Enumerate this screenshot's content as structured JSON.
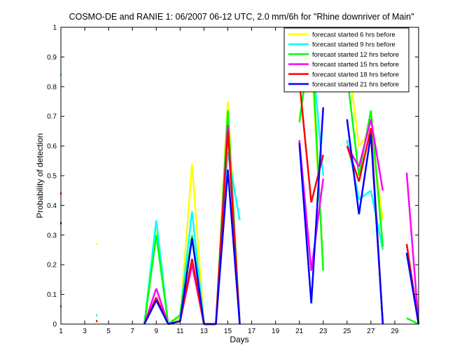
{
  "chart_data": {
    "type": "line",
    "title": "COSMO-DE and RANIE 1: 06/2007 06-12 UTC, 2.0 mm/6h for \"Rhine downriver of Main\"",
    "xlabel": "Days",
    "ylabel": "Probability of detection",
    "xlim": [
      1,
      31
    ],
    "ylim": [
      0,
      1
    ],
    "x_ticks": [
      1,
      3,
      5,
      7,
      9,
      11,
      13,
      15,
      17,
      19,
      21,
      23,
      25,
      27,
      29
    ],
    "y_ticks": [
      0,
      0.1,
      0.2,
      0.3,
      0.4,
      0.5,
      0.6,
      0.7,
      0.8,
      0.9,
      1
    ],
    "y_tick_labels": [
      "0",
      "0.1",
      "0.2",
      "0.3",
      "0.4",
      "0.5",
      "0.6",
      "0.7",
      "0.8",
      "0.9",
      "1"
    ],
    "grid": false,
    "legend_position": "top-right",
    "series": [
      {
        "name": "forecast started 6 hrs before",
        "color": "#ffff00",
        "points": [
          [
            1,
            0.95
          ],
          [
            4,
            0.27
          ],
          [
            8,
            0
          ],
          [
            9,
            0.32
          ],
          [
            10,
            0
          ],
          [
            11,
            0.02
          ],
          [
            12,
            0.54
          ],
          [
            13,
            0
          ],
          [
            14,
            0
          ],
          [
            15,
            0.75
          ],
          [
            16,
            0
          ],
          [
            21,
            0.98
          ],
          [
            22,
            0.9
          ],
          [
            23,
            0.2
          ],
          [
            25,
            0.92
          ],
          [
            26,
            0.6
          ],
          [
            27,
            0.65
          ],
          [
            28,
            0.35
          ]
        ]
      },
      {
        "name": "forecast started 9 hrs before",
        "color": "#00ffff",
        "points": [
          [
            1,
            0.84
          ],
          [
            4,
            0.03
          ],
          [
            8,
            0
          ],
          [
            9,
            0.35
          ],
          [
            10,
            0
          ],
          [
            11,
            0.03
          ],
          [
            12,
            0.38
          ],
          [
            13,
            0
          ],
          [
            14,
            0
          ],
          [
            15,
            0.58
          ],
          [
            16,
            0.35
          ],
          [
            21,
            0.93
          ],
          [
            22,
            0.95
          ],
          [
            23,
            0.5
          ],
          [
            25,
            0.62
          ],
          [
            26,
            0.42
          ],
          [
            27,
            0.45
          ],
          [
            28,
            0.25
          ]
        ]
      },
      {
        "name": "forecast started 12 hrs before",
        "color": "#00ff00",
        "points": [
          [
            1,
            0.11
          ],
          [
            4,
            0.01
          ],
          [
            8,
            0
          ],
          [
            9,
            0.3
          ],
          [
            10,
            0
          ],
          [
            11,
            0.03
          ],
          [
            12,
            0.3
          ],
          [
            13,
            0
          ],
          [
            14,
            0
          ],
          [
            15,
            0.72
          ],
          [
            16,
            0
          ],
          [
            21,
            0.68
          ],
          [
            22,
            0.97
          ],
          [
            23,
            0.18
          ],
          [
            25,
            0.84
          ],
          [
            26,
            0.5
          ],
          [
            27,
            0.72
          ],
          [
            28,
            0.26
          ],
          [
            30,
            0.02
          ],
          [
            31,
            0
          ]
        ]
      },
      {
        "name": "forecast started 15 hrs before",
        "color": "#ff00ff",
        "points": [
          [
            1,
            0.06
          ],
          [
            8,
            0
          ],
          [
            9,
            0.12
          ],
          [
            10,
            0
          ],
          [
            11,
            0.01
          ],
          [
            12,
            0.2
          ],
          [
            13,
            0
          ],
          [
            14,
            0
          ],
          [
            15,
            0.67
          ],
          [
            16,
            0
          ],
          [
            21,
            0.62
          ],
          [
            22,
            0.18
          ],
          [
            23,
            0.49
          ],
          [
            25,
            0.6
          ],
          [
            26,
            0.53
          ],
          [
            27,
            0.69
          ],
          [
            28,
            0.45
          ],
          [
            30,
            0.51
          ],
          [
            31,
            0
          ]
        ]
      },
      {
        "name": "forecast started 18 hrs before",
        "color": "#ff0000",
        "points": [
          [
            1,
            0.44
          ],
          [
            4,
            0.01
          ],
          [
            8,
            0
          ],
          [
            9,
            0.09
          ],
          [
            10,
            0
          ],
          [
            11,
            0.01
          ],
          [
            12,
            0.22
          ],
          [
            13,
            0
          ],
          [
            14,
            0
          ],
          [
            15,
            0.65
          ],
          [
            16,
            0
          ],
          [
            21,
            0.82
          ],
          [
            22,
            0.41
          ],
          [
            23,
            0.57
          ],
          [
            25,
            0.6
          ],
          [
            26,
            0.48
          ],
          [
            27,
            0.66
          ],
          [
            28,
            0
          ],
          [
            30,
            0.27
          ],
          [
            31,
            0
          ]
        ]
      },
      {
        "name": "forecast started 21 hrs before",
        "color": "#0000ff",
        "points": [
          [
            1,
            0.34
          ],
          [
            8,
            0
          ],
          [
            9,
            0.08
          ],
          [
            10,
            0
          ],
          [
            11,
            0.01
          ],
          [
            12,
            0.29
          ],
          [
            13,
            0
          ],
          [
            14,
            0
          ],
          [
            15,
            0.52
          ],
          [
            16,
            0
          ],
          [
            21,
            0.61
          ],
          [
            22,
            0.07
          ],
          [
            23,
            0.73
          ],
          [
            25,
            0.69
          ],
          [
            26,
            0.37
          ],
          [
            27,
            0.64
          ],
          [
            28,
            0
          ],
          [
            30,
            0.24
          ],
          [
            31,
            0
          ]
        ]
      }
    ]
  }
}
